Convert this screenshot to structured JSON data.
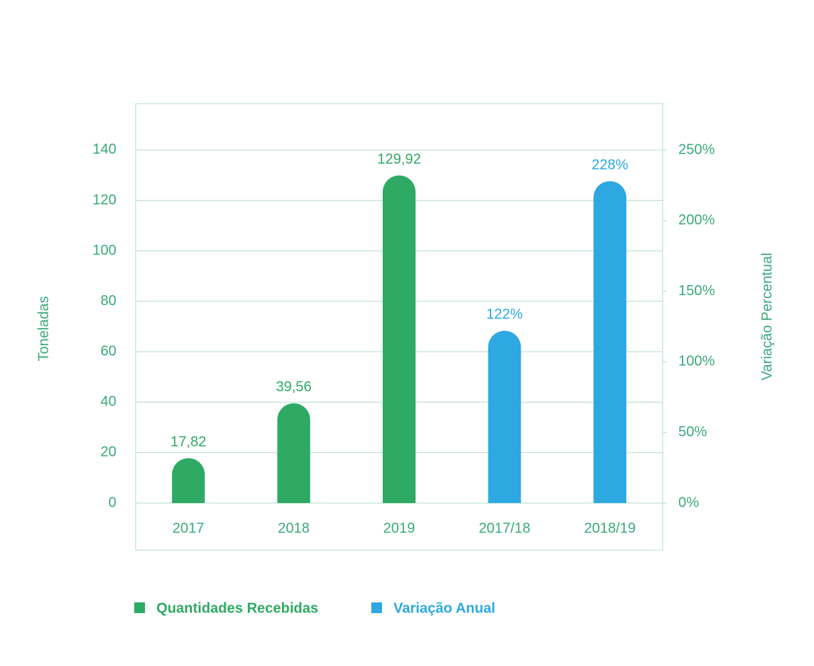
{
  "chart_data": {
    "type": "bar",
    "categories": [
      "2017",
      "2018",
      "2019",
      "2017/18",
      "2018/19"
    ],
    "series": [
      {
        "name": "Quantidades Recebidas",
        "color": "#2eaa65",
        "axis": "y",
        "values": [
          17.82,
          39.56,
          129.92,
          null,
          null
        ],
        "value_labels": [
          "17,82",
          "39,56",
          "129,92",
          null,
          null
        ]
      },
      {
        "name": "Variação Anual",
        "color": "#2ea8e0",
        "axis": "y2",
        "values": [
          null,
          null,
          null,
          122,
          228
        ],
        "value_labels": [
          null,
          null,
          null,
          "122%",
          "228%"
        ]
      }
    ],
    "ylabel": "Toneladas",
    "y2label": "Variação Percentual",
    "ylim": [
      -18.7,
      158.4
    ],
    "yticks": [
      0,
      20,
      40,
      60,
      80,
      100,
      120,
      140
    ],
    "y2lim": [
      -33.4,
      282.9
    ],
    "y2ticks": [
      {
        "value": 0,
        "label": "0%"
      },
      {
        "value": 50,
        "label": "50%"
      },
      {
        "value": 100,
        "label": "100%"
      },
      {
        "value": 150,
        "label": "150%"
      },
      {
        "value": 200,
        "label": "200%"
      },
      {
        "value": 250,
        "label": "250%"
      }
    ],
    "grid": true
  }
}
